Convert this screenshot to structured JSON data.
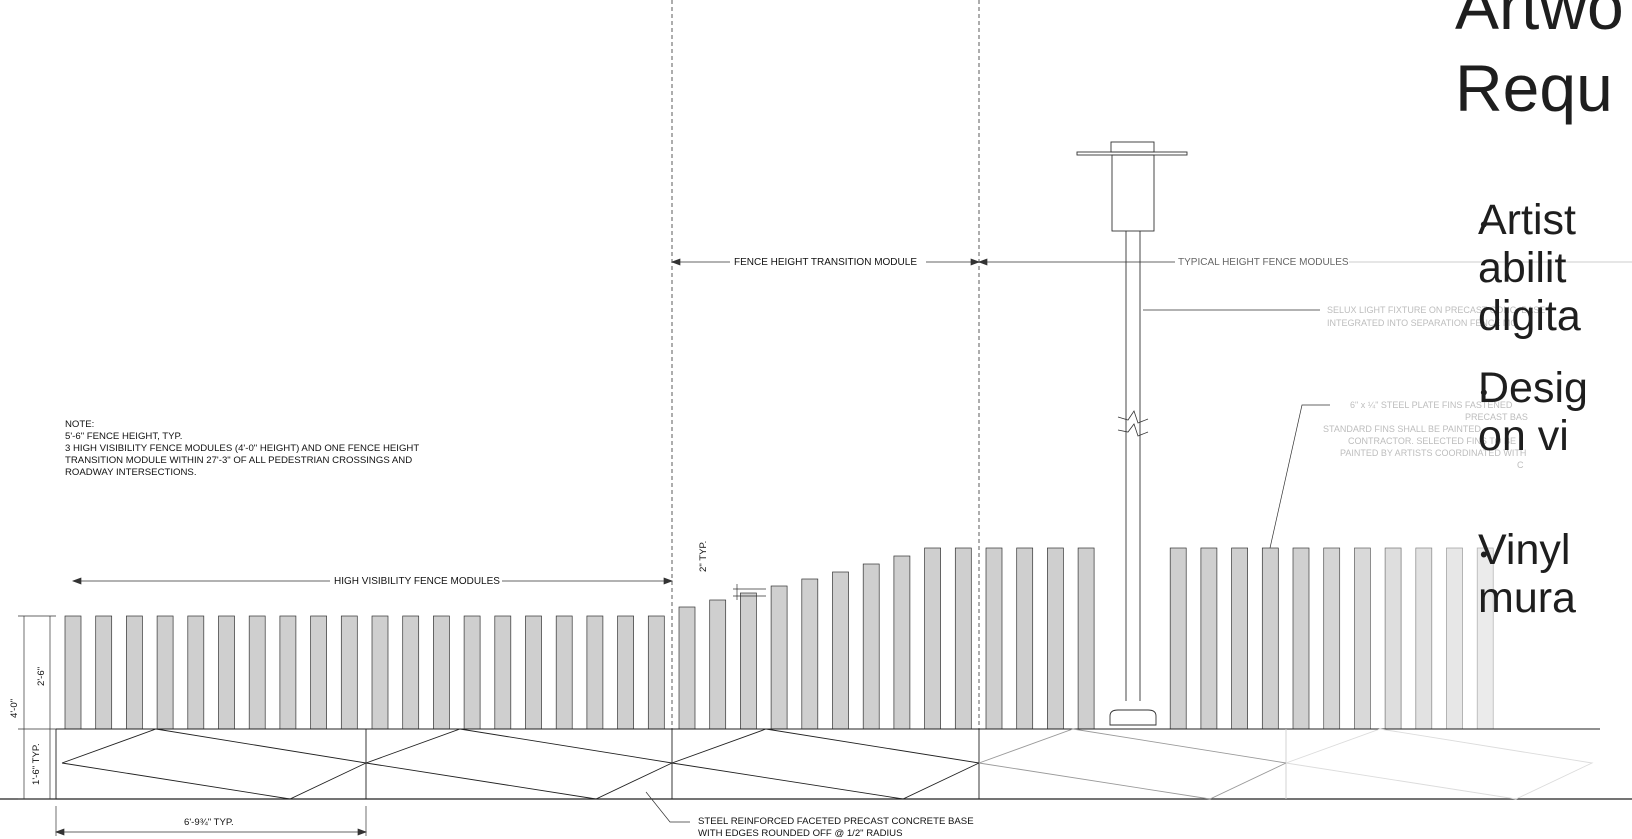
{
  "note": {
    "lines": [
      "NOTE:",
      "5'-6\" FENCE HEIGHT, TYP.",
      "3 HIGH VISIBILITY FENCE MODULES (4'-0\" HEIGHT) AND ONE FENCE HEIGHT",
      "TRANSITION MODULE WITHIN 27'-3\" OF ALL PEDESTRIAN CROSSINGS AND",
      "ROADWAY INTERSECTIONS."
    ]
  },
  "labels": {
    "transition_module": "FENCE HEIGHT TRANSITION MODULE",
    "typical_height": "TYPICAL HEIGHT FENCE MODULES",
    "high_visibility": "HIGH VISIBILITY FENCE MODULES",
    "light_fixture": [
      "SELUX LIGHT FIXTURE ON PRECAST CONC. BASE",
      "INTEGRATED INTO SEPARATION FENCE MO"
    ],
    "steel_fins": [
      "6\" x ¼\" STEEL PLATE FINS FASTENED",
      "PRECAST BAS",
      "STANDARD FINS SHALL BE PAINTED",
      "CONTRACTOR. SELECTED FINS TO BE",
      "PAINTED BY ARTISTS COORDINATED WITH",
      "C"
    ],
    "base": [
      "STEEL REINFORCED FACETED PRECAST CONCRETE BASE",
      "WITH EDGES ROUNDED OFF @ 1/2\" RADIUS"
    ]
  },
  "dimensions": {
    "two_in_typ": "2\" TYP.",
    "four_ft": "4'-0\"",
    "two_six": "2'-6\"",
    "one_six_typ": "1'-6\" TYP.",
    "module_width": "6'-9¾\" TYP."
  },
  "slide": {
    "title_lines": [
      "Artwo",
      "Requ"
    ],
    "bullets": [
      [
        "Artist",
        "abilit",
        "digita"
      ],
      [
        "Desig",
        "on vi"
      ],
      [
        "Vinyl",
        "mura"
      ]
    ]
  },
  "colors": {
    "fin_fill": "#cfcfcf",
    "line": "#222222",
    "faded_line": "#c8c8c8"
  }
}
